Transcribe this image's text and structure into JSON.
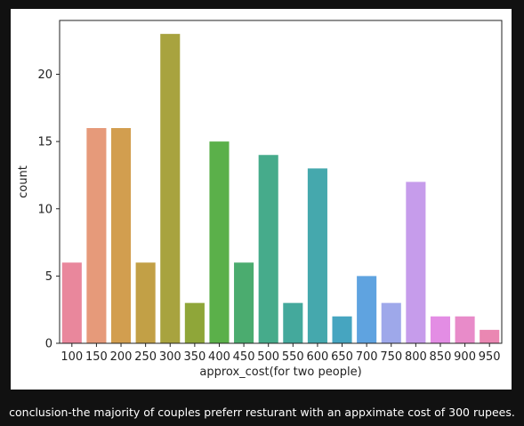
{
  "caption": "conclusion-the majority of couples preferr resturant with an appximate cost of 300 rupees.",
  "chart_data": {
    "type": "bar",
    "title": "",
    "xlabel": "approx_cost(for two people)",
    "ylabel": "count",
    "categories": [
      "100",
      "150",
      "200",
      "250",
      "300",
      "350",
      "400",
      "450",
      "500",
      "550",
      "600",
      "650",
      "700",
      "750",
      "800",
      "850",
      "900",
      "950"
    ],
    "values": [
      6,
      16,
      16,
      6,
      23,
      3,
      15,
      6,
      14,
      3,
      13,
      2,
      5,
      3,
      12,
      2,
      2,
      1
    ],
    "colors": [
      "#e9879c",
      "#e69a7a",
      "#d29e4f",
      "#c2a046",
      "#a8a33f",
      "#8fa639",
      "#5bb04a",
      "#4bac6f",
      "#46ab8b",
      "#44a99c",
      "#45a8ad",
      "#46a5c0",
      "#5fa3e0",
      "#9ea8ea",
      "#c69ceb",
      "#e38de4",
      "#e88bc9",
      "#ea87b2"
    ],
    "ylim": [
      0,
      24
    ],
    "yticks": [
      0,
      5,
      10,
      15,
      20
    ],
    "grid": false
  }
}
